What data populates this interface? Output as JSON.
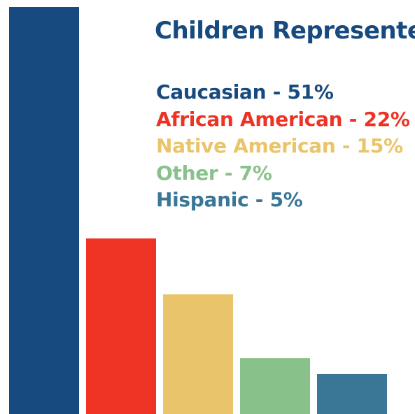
{
  "chart_data": {
    "type": "bar",
    "title": "Children Represente",
    "categories": [
      "Caucasian",
      "African American",
      "Native American",
      "Other",
      "Hispanic"
    ],
    "values": [
      51,
      22,
      15,
      7,
      5
    ],
    "unit": "%",
    "colors": [
      "#174a7e",
      "#ee3224",
      "#e9c46a",
      "#88c28a",
      "#3a7797"
    ],
    "legend_labels": [
      "Caucasian - 51%",
      "African American - 22%",
      "Native American - 15%",
      "Other - 7%",
      "Hispanic - 5%"
    ],
    "title_color": "#174a7e",
    "grid": false,
    "axes_visible": false,
    "legend_position": "top-right"
  }
}
